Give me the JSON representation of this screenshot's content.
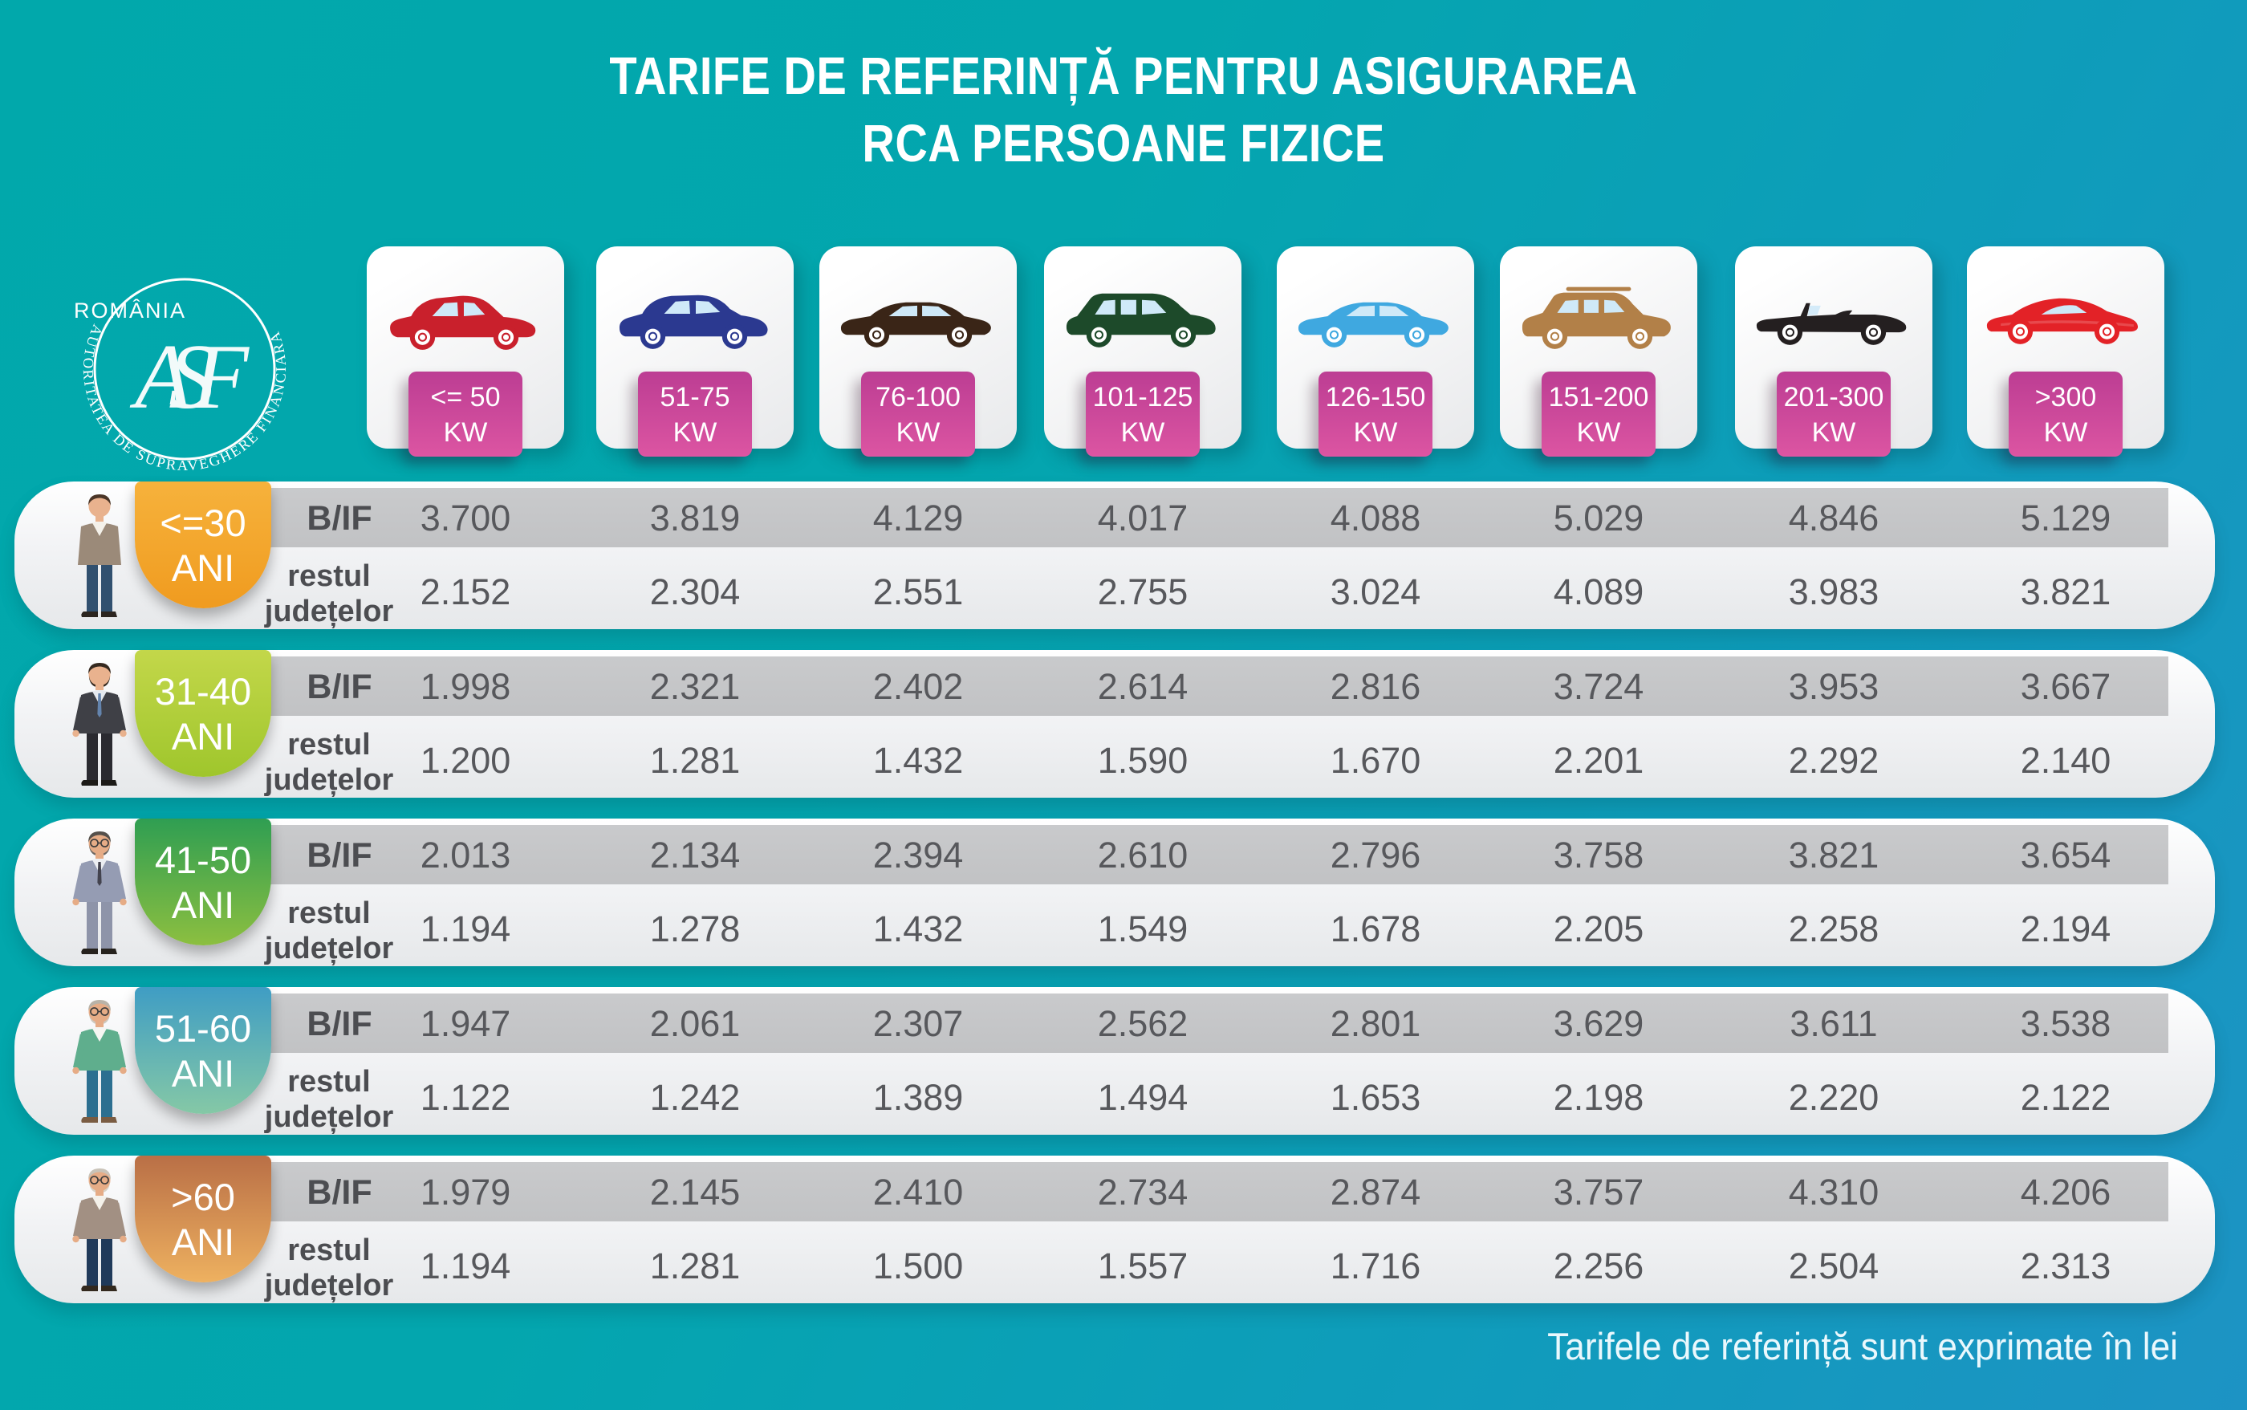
{
  "title": {
    "line1": "TARIFE DE REFERINȚĂ PENTRU ASIGURAREA",
    "line2": "RCA PERSOANE FIZICE"
  },
  "logo": {
    "country": "ROMÂNIA",
    "ring_text": "AUTORITATEA DE SUPRAVEGHERE FINANCIARĂ",
    "monogram": "ASF"
  },
  "accent": {
    "kw_tag_top": "#bc3d93",
    "kw_tag_bottom": "#dc55a2"
  },
  "columns": [
    {
      "power": "<= 50",
      "unit": "KW",
      "car": "hatchback",
      "color": "#c9202c"
    },
    {
      "power": "51-75",
      "unit": "KW",
      "car": "crossover",
      "color": "#2b3990"
    },
    {
      "power": "76-100",
      "unit": "KW",
      "car": "sedan",
      "color": "#3a2517"
    },
    {
      "power": "101-125",
      "unit": "KW",
      "car": "minivan",
      "color": "#1d4a2a"
    },
    {
      "power": "126-150",
      "unit": "KW",
      "car": "sedan",
      "color": "#3fa8e0"
    },
    {
      "power": "151-200",
      "unit": "KW",
      "car": "suv",
      "color": "#b28048"
    },
    {
      "power": "201-300",
      "unit": "KW",
      "car": "convertible",
      "color": "#241f20"
    },
    {
      "power": ">300",
      "unit": "KW",
      "car": "sports",
      "color": "#e32227"
    }
  ],
  "labels": {
    "bif": "B/IF",
    "rest_line1": "restul",
    "rest_line2": "județelor"
  },
  "age_groups": [
    {
      "age": "<=30",
      "ani": "ANI",
      "badge_top": "#f6b23c",
      "badge_bottom": "#f09b1f",
      "bif": [
        "3.700",
        "3.819",
        "4.129",
        "4.017",
        "4.088",
        "5.029",
        "4.846",
        "5.129"
      ],
      "rest": [
        "2.152",
        "2.304",
        "2.551",
        "2.755",
        "3.024",
        "4.089",
        "3.983",
        "3.821"
      ]
    },
    {
      "age": "31-40",
      "ani": "ANI",
      "badge_top": "#c3d74a",
      "badge_bottom": "#9fc62c",
      "bif": [
        "1.998",
        "2.321",
        "2.402",
        "2.614",
        "2.816",
        "3.724",
        "3.953",
        "3.667"
      ],
      "rest": [
        "1.200",
        "1.281",
        "1.432",
        "1.590",
        "1.670",
        "2.201",
        "2.292",
        "2.140"
      ]
    },
    {
      "age": "41-50",
      "ani": "ANI",
      "badge_top": "#2f9e52",
      "badge_bottom": "#8cbf40",
      "bif": [
        "2.013",
        "2.134",
        "2.394",
        "2.610",
        "2.796",
        "3.758",
        "3.821",
        "3.654"
      ],
      "rest": [
        "1.194",
        "1.278",
        "1.432",
        "1.549",
        "1.678",
        "2.205",
        "2.258",
        "2.194"
      ]
    },
    {
      "age": "51-60",
      "ani": "ANI",
      "badge_top": "#3f9dc4",
      "badge_bottom": "#85c8a6",
      "bif": [
        "1.947",
        "2.061",
        "2.307",
        "2.562",
        "2.801",
        "3.629",
        "3.611",
        "3.538"
      ],
      "rest": [
        "1.122",
        "1.242",
        "1.389",
        "1.494",
        "1.653",
        "2.198",
        "2.220",
        "2.122"
      ]
    },
    {
      "age": ">60",
      "ani": "ANI",
      "badge_top": "#b96f46",
      "badge_bottom": "#eeb160",
      "bif": [
        "1.979",
        "2.145",
        "2.410",
        "2.734",
        "2.874",
        "3.757",
        "4.310",
        "4.206"
      ],
      "rest": [
        "1.194",
        "1.281",
        "1.500",
        "1.557",
        "1.716",
        "2.256",
        "2.504",
        "2.313"
      ]
    }
  ],
  "footer": "Tarifele de referință sunt exprimate în lei",
  "chart_data": {
    "type": "table",
    "title": "TARIFE DE REFERINȚĂ PENTRU ASIGURAREA RCA PERSOANE FIZICE",
    "unit": "lei",
    "note": "Tarifele de referință sunt exprimate în lei",
    "power_classes_kw": [
      "<=50",
      "51-75",
      "76-100",
      "101-125",
      "126-150",
      "151-200",
      "201-300",
      ">300"
    ],
    "age_groups": [
      "<=30 ANI",
      "31-40 ANI",
      "41-50 ANI",
      "51-60 ANI",
      ">60 ANI"
    ],
    "series": [
      {
        "age_group": "<=30 ANI",
        "zone": "B/IF",
        "values": [
          3700,
          3819,
          4129,
          4017,
          4088,
          5029,
          4846,
          5129
        ]
      },
      {
        "age_group": "<=30 ANI",
        "zone": "restul județelor",
        "values": [
          2152,
          2304,
          2551,
          2755,
          3024,
          4089,
          3983,
          3821
        ]
      },
      {
        "age_group": "31-40 ANI",
        "zone": "B/IF",
        "values": [
          1998,
          2321,
          2402,
          2614,
          2816,
          3724,
          3953,
          3667
        ]
      },
      {
        "age_group": "31-40 ANI",
        "zone": "restul județelor",
        "values": [
          1200,
          1281,
          1432,
          1590,
          1670,
          2201,
          2292,
          2140
        ]
      },
      {
        "age_group": "41-50 ANI",
        "zone": "B/IF",
        "values": [
          2013,
          2134,
          2394,
          2610,
          2796,
          3758,
          3821,
          3654
        ]
      },
      {
        "age_group": "41-50 ANI",
        "zone": "restul județelor",
        "values": [
          1194,
          1278,
          1432,
          1549,
          1678,
          2205,
          2258,
          2194
        ]
      },
      {
        "age_group": "51-60 ANI",
        "zone": "B/IF",
        "values": [
          1947,
          2061,
          2307,
          2562,
          2801,
          3629,
          3611,
          3538
        ]
      },
      {
        "age_group": "51-60 ANI",
        "zone": "restul județelor",
        "values": [
          1122,
          1242,
          1389,
          1494,
          1653,
          2198,
          2220,
          2122
        ]
      },
      {
        "age_group": ">60 ANI",
        "zone": "B/IF",
        "values": [
          1979,
          2145,
          2410,
          2734,
          2874,
          3757,
          4310,
          4206
        ]
      },
      {
        "age_group": ">60 ANI",
        "zone": "restul județelor",
        "values": [
          1194,
          1281,
          1500,
          1557,
          1716,
          2256,
          2504,
          2313
        ]
      }
    ]
  }
}
